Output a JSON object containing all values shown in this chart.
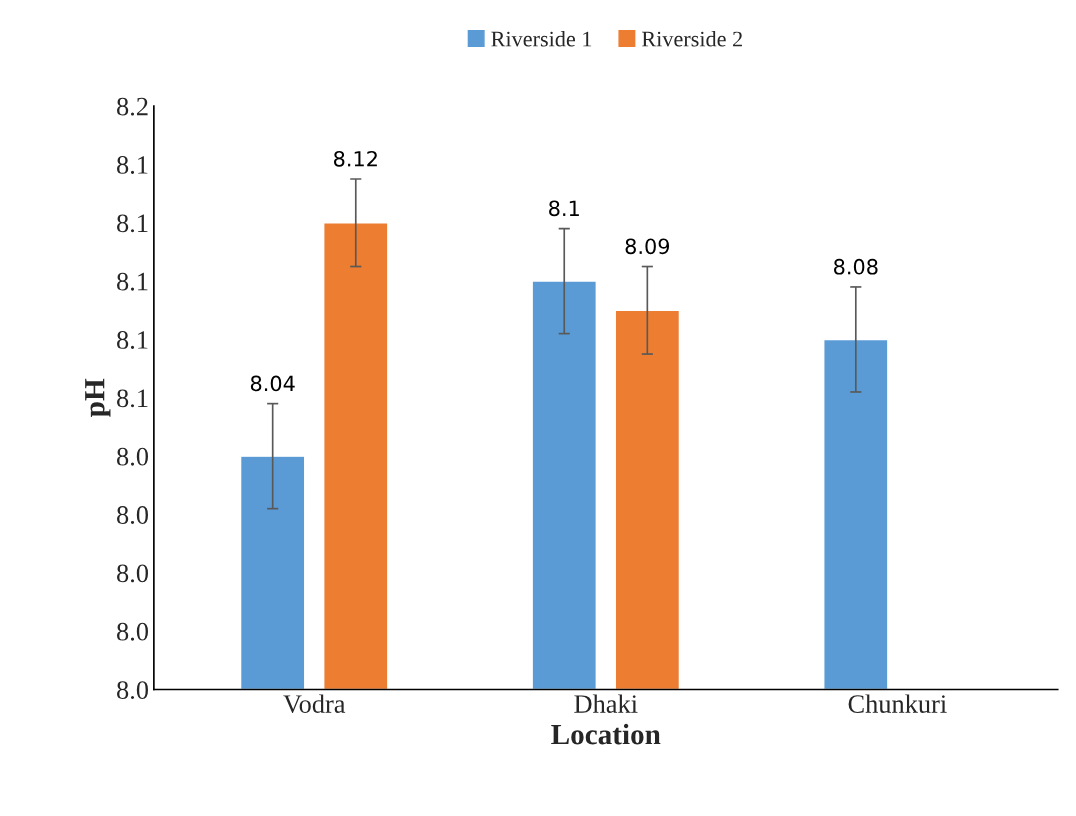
{
  "chart_data": {
    "type": "bar",
    "xlabel": "Location",
    "ylabel": "pH",
    "categories": [
      "Vodra",
      "Dhaki",
      "Chunkuri"
    ],
    "series": [
      {
        "name": "Riverside 1",
        "color": "#5b9bd5",
        "values": [
          8.04,
          8.1,
          8.08
        ],
        "errors": [
          0.018,
          0.018,
          0.018
        ]
      },
      {
        "name": "Riverside 2",
        "color": "#ed7d31",
        "values": [
          8.12,
          8.09,
          null
        ],
        "errors": [
          0.015,
          0.015,
          null
        ]
      }
    ],
    "ylim": [
      7.96,
      8.16
    ],
    "yticks": [
      {
        "value": 7.96,
        "label": "8.0"
      },
      {
        "value": 7.98,
        "label": "8.0"
      },
      {
        "value": 8.0,
        "label": "8.0"
      },
      {
        "value": 8.02,
        "label": "8.0"
      },
      {
        "value": 8.04,
        "label": "8.0"
      },
      {
        "value": 8.06,
        "label": "8.1"
      },
      {
        "value": 8.08,
        "label": "8.1"
      },
      {
        "value": 8.1,
        "label": "8.1"
      },
      {
        "value": 8.12,
        "label": "8.1"
      },
      {
        "value": 8.14,
        "label": "8.1"
      },
      {
        "value": 8.16,
        "label": "8.2"
      }
    ],
    "data_labels": true,
    "grid": false,
    "legend": "top"
  }
}
